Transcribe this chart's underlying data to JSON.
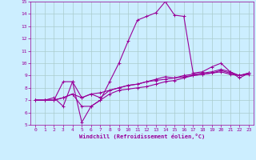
{
  "xlabel": "Windchill (Refroidissement éolien,°C)",
  "background_color": "#cceeff",
  "grid_color": "#aacccc",
  "line_color": "#990099",
  "xlim": [
    -0.5,
    23.5
  ],
  "ylim": [
    5,
    15
  ],
  "xticks": [
    0,
    1,
    2,
    3,
    4,
    5,
    6,
    7,
    8,
    9,
    10,
    11,
    12,
    13,
    14,
    15,
    16,
    17,
    18,
    19,
    20,
    21,
    22,
    23
  ],
  "yticks": [
    5,
    6,
    7,
    8,
    9,
    10,
    11,
    12,
    13,
    14,
    15
  ],
  "series": [
    [
      7.0,
      7.0,
      7.0,
      8.5,
      8.5,
      5.2,
      6.5,
      7.0,
      8.5,
      10.0,
      11.8,
      13.5,
      13.8,
      14.1,
      15.0,
      13.9,
      13.8,
      9.2,
      9.3,
      9.7,
      10.0,
      9.3,
      8.8,
      9.2
    ],
    [
      7.0,
      7.0,
      7.2,
      6.5,
      8.5,
      7.2,
      7.5,
      7.2,
      7.8,
      8.0,
      8.2,
      8.3,
      8.5,
      8.7,
      8.9,
      8.8,
      9.0,
      9.1,
      9.2,
      9.3,
      9.5,
      9.3,
      9.0,
      9.2
    ],
    [
      7.0,
      7.0,
      7.0,
      7.2,
      7.5,
      6.5,
      6.5,
      7.0,
      7.5,
      7.8,
      7.9,
      8.0,
      8.1,
      8.3,
      8.5,
      8.6,
      8.8,
      9.0,
      9.1,
      9.2,
      9.3,
      9.1,
      9.0,
      9.2
    ],
    [
      7.0,
      7.0,
      7.0,
      7.2,
      7.5,
      7.2,
      7.5,
      7.6,
      7.8,
      8.0,
      8.2,
      8.3,
      8.5,
      8.6,
      8.7,
      8.8,
      8.9,
      9.0,
      9.1,
      9.2,
      9.4,
      9.2,
      9.0,
      9.1
    ]
  ]
}
